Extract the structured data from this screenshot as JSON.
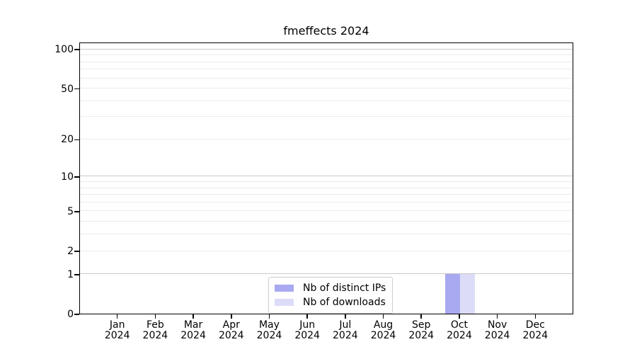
{
  "chart_data": {
    "type": "bar",
    "title": "fmeffects 2024",
    "months": [
      {
        "label": "Jan",
        "year": "2024"
      },
      {
        "label": "Feb",
        "year": "2024"
      },
      {
        "label": "Mar",
        "year": "2024"
      },
      {
        "label": "Apr",
        "year": "2024"
      },
      {
        "label": "May",
        "year": "2024"
      },
      {
        "label": "Jun",
        "year": "2024"
      },
      {
        "label": "Jul",
        "year": "2024"
      },
      {
        "label": "Aug",
        "year": "2024"
      },
      {
        "label": "Sep",
        "year": "2024"
      },
      {
        "label": "Oct",
        "year": "2024"
      },
      {
        "label": "Nov",
        "year": "2024"
      },
      {
        "label": "Dec",
        "year": "2024"
      }
    ],
    "series": [
      {
        "name": "Nb of distinct IPs",
        "color": "#a9a9f1",
        "values": [
          0,
          0,
          0,
          0,
          0,
          0,
          0,
          0,
          0,
          1,
          0,
          0
        ]
      },
      {
        "name": "Nb of downloads",
        "color": "#dcdcf8",
        "values": [
          0,
          0,
          0,
          0,
          0,
          0,
          0,
          0,
          0,
          1,
          0,
          0
        ]
      }
    ],
    "yscale": "log1p",
    "ylim": [
      0,
      113
    ],
    "y_ticks": [
      {
        "value": 0,
        "label": "0"
      },
      {
        "value": 1,
        "label": "1"
      },
      {
        "value": 2,
        "label": "2"
      },
      {
        "value": 5,
        "label": "5"
      },
      {
        "value": 10,
        "label": "10"
      },
      {
        "value": 20,
        "label": "20"
      },
      {
        "value": 50,
        "label": "50"
      },
      {
        "value": 100,
        "label": "100"
      }
    ],
    "y_major_grid": [
      1,
      10,
      100
    ],
    "y_minor_grid": [
      2,
      3,
      4,
      5,
      6,
      7,
      8,
      9,
      20,
      30,
      40,
      50,
      60,
      70,
      80,
      90
    ],
    "grid": "horizontal",
    "legend_position": "lower center inside",
    "colors": {
      "major_grid": "#c9c9c9",
      "minor_grid": "#ececec",
      "spine": "#000000",
      "background": "#ffffff"
    }
  }
}
